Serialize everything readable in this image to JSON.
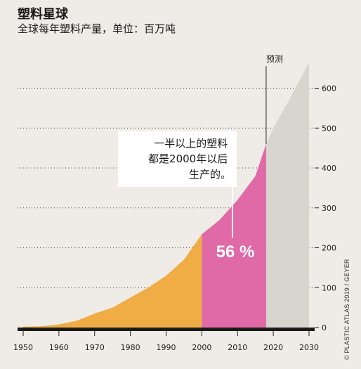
{
  "title": "塑料星球",
  "subtitle": "全球每年塑料产量，单位：百万吨",
  "credit": "© PLASTIC ATLAS 2019 / GEYER",
  "chart_data": {
    "type": "area",
    "title": "塑料星球",
    "subtitle": "全球每年塑料产量，单位：百万吨",
    "unit": "百万吨",
    "x": [
      1950,
      1955,
      1960,
      1965,
      1970,
      1975,
      1980,
      1985,
      1990,
      1995,
      2000,
      2005,
      2010,
      2015,
      2018,
      2020,
      2025,
      2030
    ],
    "y": [
      2,
      3,
      8,
      17,
      35,
      50,
      75,
      100,
      130,
      170,
      234,
      270,
      320,
      380,
      460,
      500,
      580,
      665
    ],
    "segments": [
      {
        "from": 1950,
        "to": 2000,
        "color": "#f0ac45"
      },
      {
        "from": 2000,
        "to": 2018,
        "color": "#e06aa8"
      },
      {
        "from": 2018,
        "to": 2030,
        "color": "#d8d5cf",
        "label": "预测"
      }
    ],
    "xticks": [
      "1950",
      "1960",
      "1970",
      "1980",
      "1990",
      "2000",
      "2010",
      "2020",
      "2030"
    ],
    "yticks": [
      "0",
      "100",
      "200",
      "300",
      "400",
      "500",
      "600"
    ],
    "xlim": [
      1950,
      2030
    ],
    "ylim": [
      0,
      700
    ],
    "grid": "dotted-horizontal",
    "forecast_label": "预测",
    "callout": [
      "一半以上的塑料",
      "都是2000年以后",
      "生产的。"
    ],
    "highlight_value": "56 %",
    "colors": {
      "early": "#f0ac45",
      "recent": "#e06aa8",
      "forecast": "#d8d5cf"
    }
  }
}
